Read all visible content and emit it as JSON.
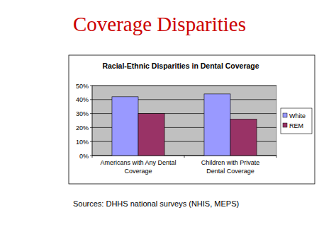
{
  "heading": "Coverage Disparities",
  "chart_data": {
    "type": "bar",
    "title": "Racial-Ethnic Disparities in Dental Coverage",
    "categories": [
      "Americans with Any Dental Coverage",
      "Children with Private Dental Coverage"
    ],
    "series": [
      {
        "name": "White",
        "color": "#9999ff",
        "values": [
          42,
          44
        ]
      },
      {
        "name": "REM",
        "color": "#993366",
        "values": [
          30,
          26
        ]
      }
    ],
    "ylim": [
      0,
      50
    ],
    "yticks": [
      {
        "value": 0,
        "label": "0%"
      },
      {
        "value": 10,
        "label": "10%"
      },
      {
        "value": 20,
        "label": "20%"
      },
      {
        "value": 30,
        "label": "30%"
      },
      {
        "value": 40,
        "label": "40%"
      },
      {
        "value": 50,
        "label": "50%"
      }
    ],
    "grid": true,
    "legend": "right"
  },
  "footer": "Sources: DHHS national surveys (NHIS, MEPS)"
}
